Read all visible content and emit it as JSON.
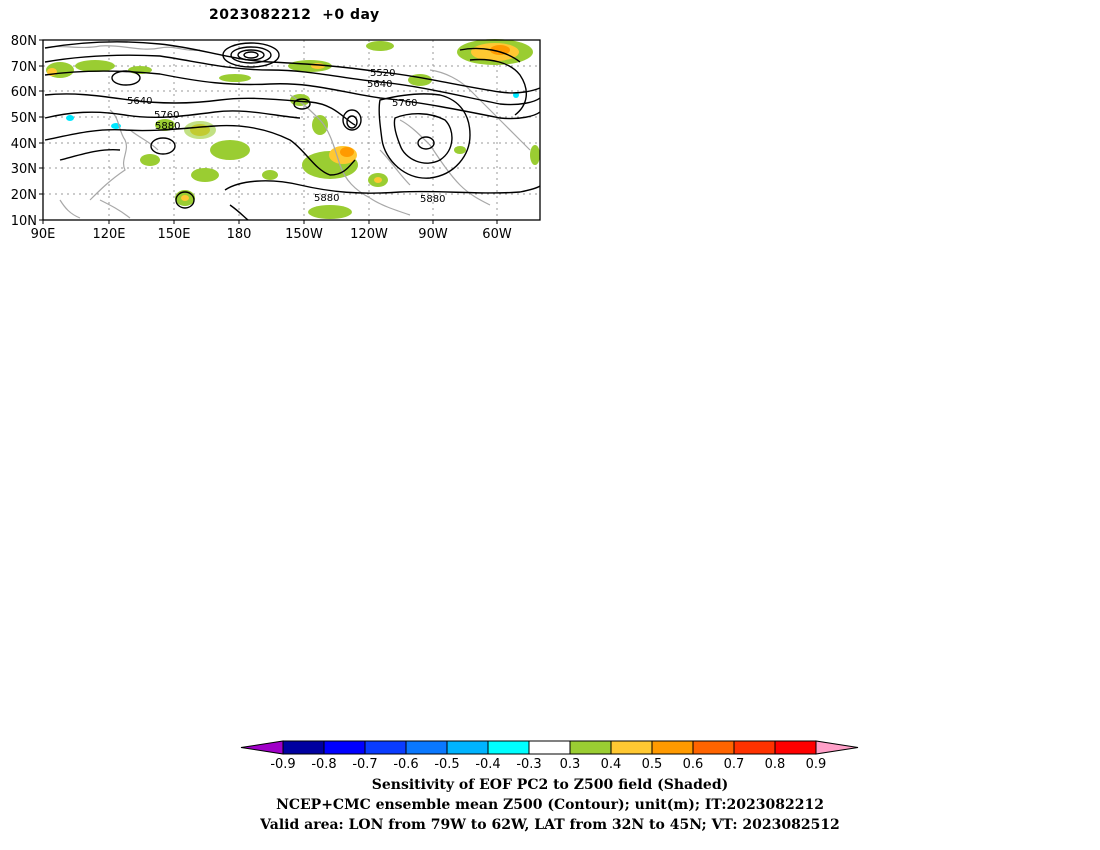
{
  "title": "2023082212  +0 day",
  "map": {
    "lat_labels": [
      "80N",
      "70N",
      "60N",
      "50N",
      "40N",
      "30N",
      "20N",
      "10N"
    ],
    "lon_labels": [
      "90E",
      "120E",
      "150E",
      "180",
      "150W",
      "120W",
      "90W",
      "60W"
    ],
    "contour_labels": [
      "5520",
      "5640",
      "5640",
      "5760",
      "5760",
      "5880",
      "5880",
      "5880"
    ],
    "colors": {
      "land_outline": "#a8a8a8",
      "contour": "#000000",
      "shade_green": "#9acd32",
      "shade_yellow": "#ffc832",
      "shade_orange": "#ff9a00",
      "shade_cyan": "#00e8ff"
    }
  },
  "colorbar": {
    "labels": [
      "-0.9",
      "-0.8",
      "-0.7",
      "-0.6",
      "-0.5",
      "-0.4",
      "-0.3",
      "0.3",
      "0.4",
      "0.5",
      "0.6",
      "0.7",
      "0.8",
      "0.9"
    ],
    "colors": [
      "#a000c8",
      "#0000a0",
      "#0000ff",
      "#0a3cff",
      "#0a78ff",
      "#00b4ff",
      "#00ffff",
      "#ffffff",
      "#9acd32",
      "#ffc832",
      "#ff9a00",
      "#ff6400",
      "#ff3200",
      "#ff0000",
      "#ffa0c8"
    ]
  },
  "captions": [
    "Sensitivity of EOF PC2 to Z500 field (Shaded)",
    "NCEP+CMC ensemble mean Z500 (Contour); unit(m); IT:2023082212",
    "Valid area: LON from 79W to 62W, LAT from 32N to 45N; VT: 2023082512"
  ]
}
